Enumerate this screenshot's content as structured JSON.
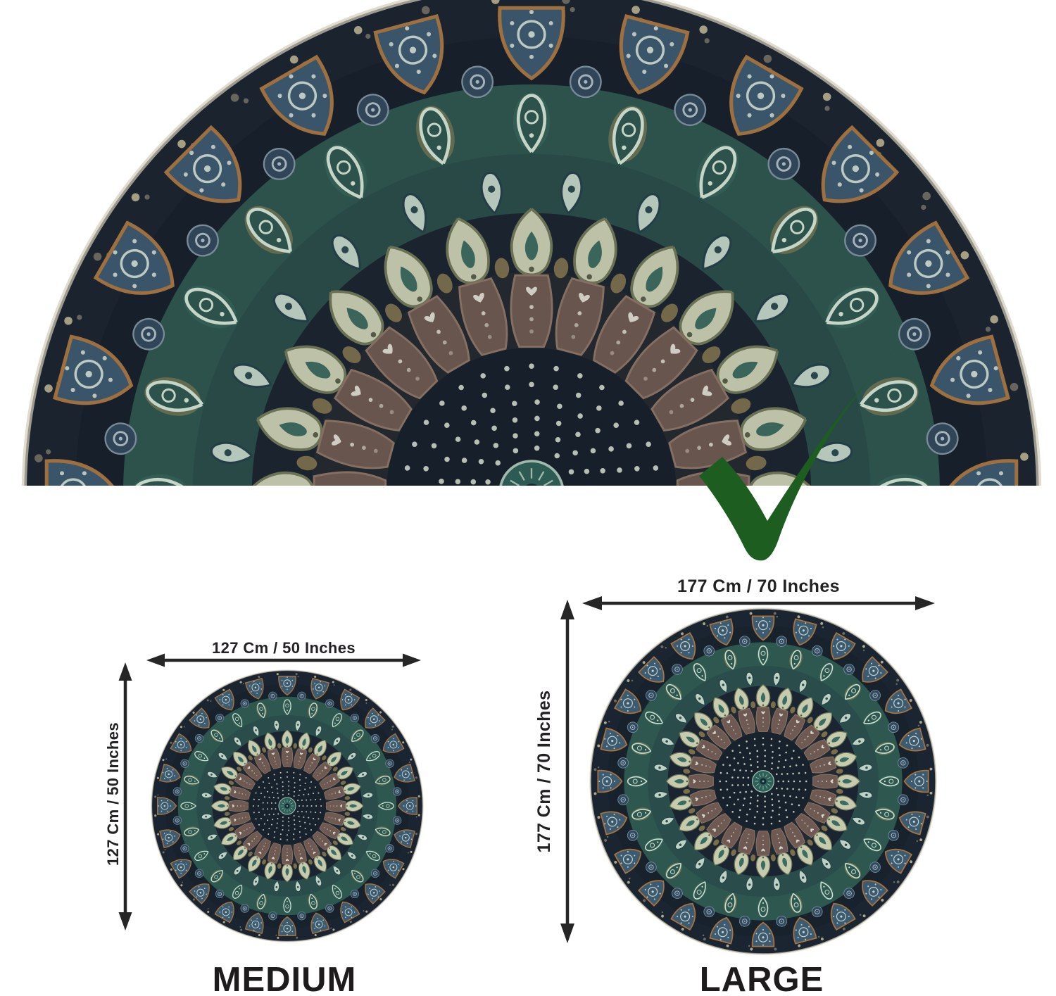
{
  "sizes": {
    "medium": {
      "label": "MEDIUM",
      "width_label": "127 Cm / 50 Inches",
      "height_label": "127 Cm / 50 Inches"
    },
    "large": {
      "label": "LARGE",
      "width_label": "177 Cm / 70 Inches",
      "height_label": "177 Cm / 70 Inches"
    }
  },
  "icons": {
    "approved": "check-icon"
  },
  "colors": {
    "background": "#ffffff",
    "checkmark": "#1d5e20",
    "dimension_lines": "#262626",
    "label_text": "#1d1b1c"
  },
  "palette": {
    "navy": "#1b2531",
    "navy_deep": "#18222d",
    "teal": "#2d574f",
    "teal_dark": "#2a4d4b",
    "teal_light": "#3c6b5f",
    "mint": "#cfe0d2",
    "pale": "#bed2c3",
    "cream_bulb": "#c6cbae",
    "khaki": "#a28b58",
    "rust": "#a9743f",
    "brown": "#6e5a52",
    "brown_light": "#8d7466",
    "steel": "#3c5a70",
    "steel_dot": "#31495e",
    "edge": "#ded6c2"
  }
}
